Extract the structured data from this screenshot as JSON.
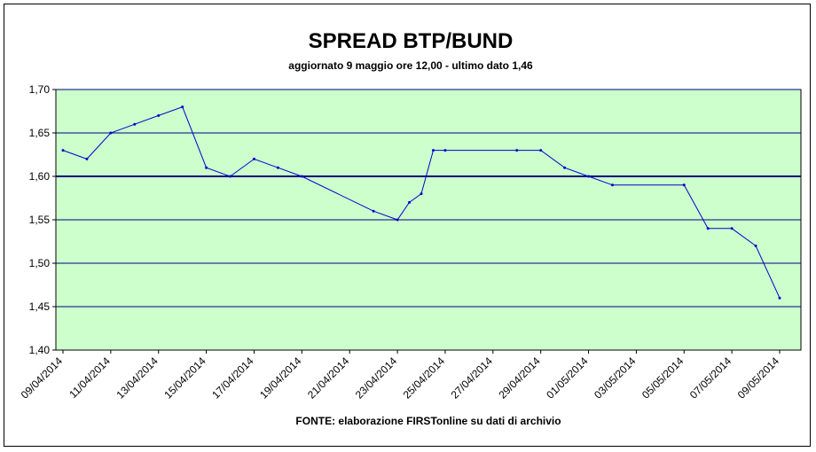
{
  "chart_data": {
    "type": "line",
    "title": "SPREAD BTP/BUND",
    "subtitle": "aggiornato 9 maggio ore 12,00 - ultimo dato 1,46",
    "source": "FONTE:  elaborazione FIRSTonline su dati di archivio",
    "xlabel": "",
    "ylabel": "",
    "ylim": [
      1.4,
      1.7
    ],
    "y_ticks": [
      "1,40",
      "1,45",
      "1,50",
      "1,55",
      "1,60",
      "1,65",
      "1,70"
    ],
    "y_tick_values": [
      1.4,
      1.45,
      1.5,
      1.55,
      1.6,
      1.65,
      1.7
    ],
    "x_start": "09/04/2014",
    "x_end": "09/05/2014",
    "x_ticks": [
      "09/04/2014",
      "11/04/2014",
      "13/04/2014",
      "15/04/2014",
      "17/04/2014",
      "19/04/2014",
      "21/04/2014",
      "23/04/2014",
      "25/04/2014",
      "27/04/2014",
      "29/04/2014",
      "01/05/2014",
      "03/05/2014",
      "05/05/2014",
      "07/05/2014",
      "09/05/2014"
    ],
    "grid": "horizontal",
    "highlight_line": 1.6,
    "colors": {
      "plot_background": "#ccffcc",
      "line": "#0000cc",
      "gridline": "#000080"
    },
    "series": [
      {
        "x": [
          "09/04/2014",
          "10/04/2014",
          "11/04/2014",
          "12/04/2014",
          "13/04/2014",
          "14/04/2014",
          "15/04/2014",
          "16/04/2014",
          "17/04/2014",
          "18/04/2014",
          "19/04/2014",
          "22/04/2014",
          "23/04/2014",
          "23/04/2014 12:00",
          "24/04/2014",
          "24/04/2014 12:00",
          "25/04/2014",
          "28/04/2014",
          "29/04/2014",
          "30/04/2014",
          "01/05/2014",
          "02/05/2014",
          "05/05/2014",
          "06/05/2014",
          "07/05/2014",
          "08/05/2014",
          "09/05/2014"
        ],
        "values": [
          1.63,
          1.62,
          1.65,
          1.66,
          1.67,
          1.68,
          1.61,
          1.6,
          1.62,
          1.61,
          1.6,
          1.56,
          1.55,
          1.57,
          1.58,
          1.63,
          1.63,
          1.63,
          1.63,
          1.61,
          1.6,
          1.59,
          1.59,
          1.54,
          1.54,
          1.52,
          1.46
        ]
      }
    ]
  }
}
